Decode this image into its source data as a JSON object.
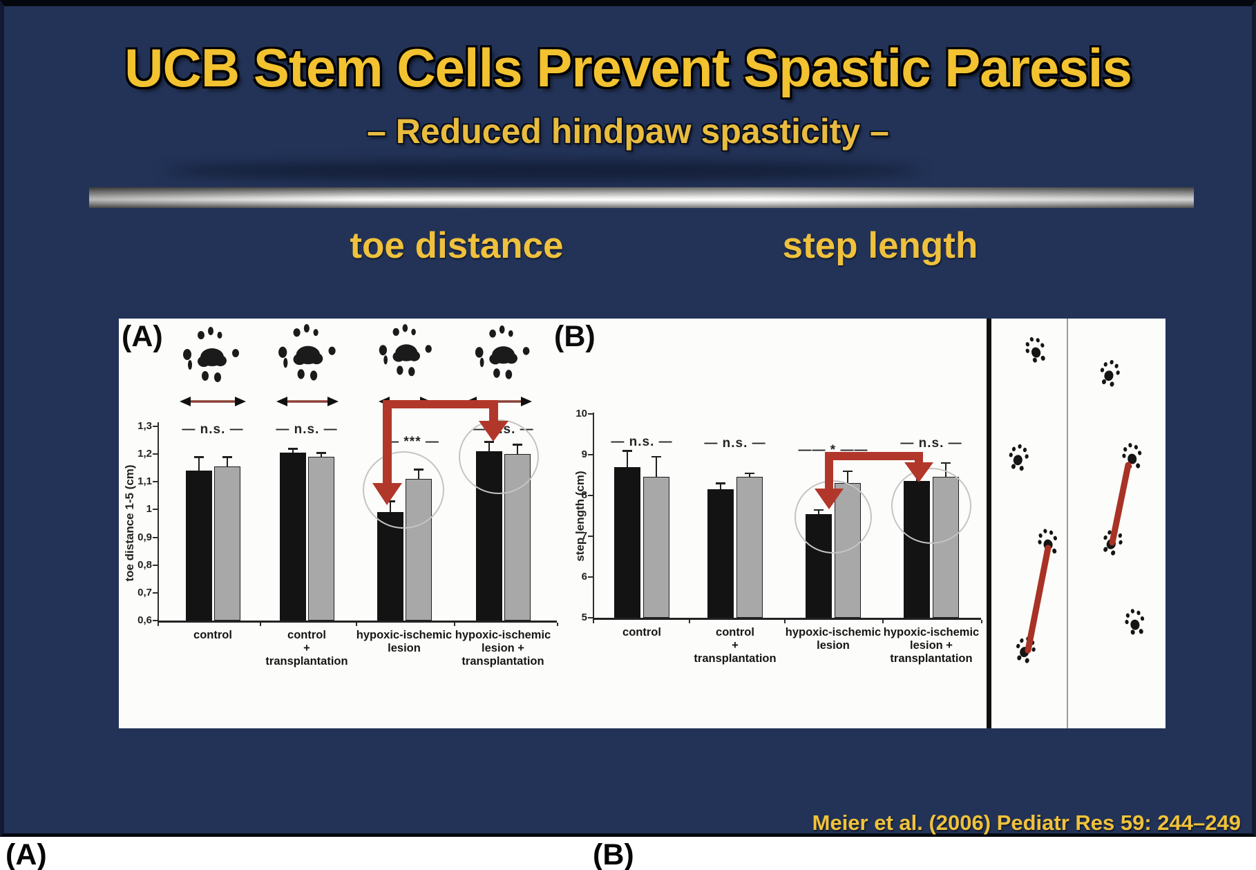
{
  "slide": {
    "title": "UCB Stem Cells Prevent Spastic Paresis",
    "subtitle": "– Reduced hindpaw spasticity –",
    "citation": "Meier et al. (2006) Pediatr Res 59: 244–249"
  },
  "section_labels": {
    "toe_distance": "toe distance",
    "step_length": "step length"
  },
  "panel_labels": {
    "a": "(A)",
    "b": "(B)"
  },
  "bottom_labels": {
    "a": "(A)",
    "b": "(B)"
  },
  "colors": {
    "background": "#233358",
    "title_yellow": "#F2C230",
    "accent_red": "#B2372B",
    "bar_black": "#131313",
    "bar_gray": "#A8A8A8",
    "panel_white": "#FCFCFA"
  },
  "chart_data": [
    {
      "id": "toe-distance",
      "type": "bar",
      "title": "toe distance",
      "ylabel": "toe distance 1-5 (cm)",
      "ylim": [
        0.6,
        1.3
      ],
      "yticks": [
        {
          "label": "1,3",
          "value": 1.3
        },
        {
          "label": "1,2",
          "value": 1.2
        },
        {
          "label": "1,1",
          "value": 1.1
        },
        {
          "label": "1",
          "value": 1.0
        },
        {
          "label": "0,9",
          "value": 0.9
        },
        {
          "label": "0,8",
          "value": 0.8
        },
        {
          "label": "0,7",
          "value": 0.7
        },
        {
          "label": "0,6",
          "value": 0.6
        }
      ],
      "categories": [
        [
          "control"
        ],
        [
          "control",
          "+",
          "transplantation"
        ],
        [
          "hypoxic-ischemic",
          "lesion"
        ],
        [
          "hypoxic-ischemic",
          "lesion +",
          "transplantation"
        ]
      ],
      "series": [
        {
          "name": "black",
          "values": [
            1.14,
            1.205,
            0.99,
            1.21
          ],
          "errors_top": [
            1.19,
            1.22,
            1.03,
            1.245
          ]
        },
        {
          "name": "gray",
          "values": [
            1.155,
            1.19,
            1.11,
            1.2
          ],
          "errors_top": [
            1.19,
            1.205,
            1.145,
            1.235
          ]
        }
      ],
      "significance": [
        "n.s.",
        "n.s.",
        "***",
        "n.s."
      ],
      "grid": false,
      "legend": "none"
    },
    {
      "id": "step-length",
      "type": "bar",
      "title": "step length",
      "ylabel": "step length (cm)",
      "ylim": [
        5,
        10
      ],
      "yticks": [
        {
          "label": "10",
          "value": 10
        },
        {
          "label": "9",
          "value": 9
        },
        {
          "label": "8",
          "value": 8
        },
        {
          "label": "7",
          "value": 7
        },
        {
          "label": "6",
          "value": 6
        },
        {
          "label": "5",
          "value": 5
        }
      ],
      "categories": [
        [
          "control"
        ],
        [
          "control",
          "+",
          "transplantation"
        ],
        [
          "hypoxic-ischemic",
          "lesion"
        ],
        [
          "hypoxic-ischemic",
          "lesion +",
          "transplantation"
        ]
      ],
      "series": [
        {
          "name": "black",
          "values": [
            8.7,
            8.15,
            7.55,
            8.35
          ],
          "errors_top": [
            9.1,
            8.3,
            7.65,
            8.75
          ]
        },
        {
          "name": "gray",
          "values": [
            8.45,
            8.45,
            8.3,
            8.45
          ],
          "errors_top": [
            8.95,
            8.55,
            8.6,
            8.8
          ]
        }
      ],
      "significance": [
        "n.s.",
        "n.s.",
        "*",
        "n.s."
      ],
      "grid": false,
      "legend": "none"
    }
  ]
}
